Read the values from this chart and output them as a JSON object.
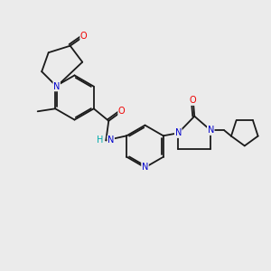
{
  "background_color": "#ebebeb",
  "bond_color": "#1a1a1a",
  "atom_colors": {
    "N": "#0000cc",
    "O": "#ee0000",
    "H": "#00aaaa",
    "C": "#1a1a1a"
  },
  "figsize": [
    3.0,
    3.0
  ],
  "dpi": 100,
  "lw": 1.3
}
